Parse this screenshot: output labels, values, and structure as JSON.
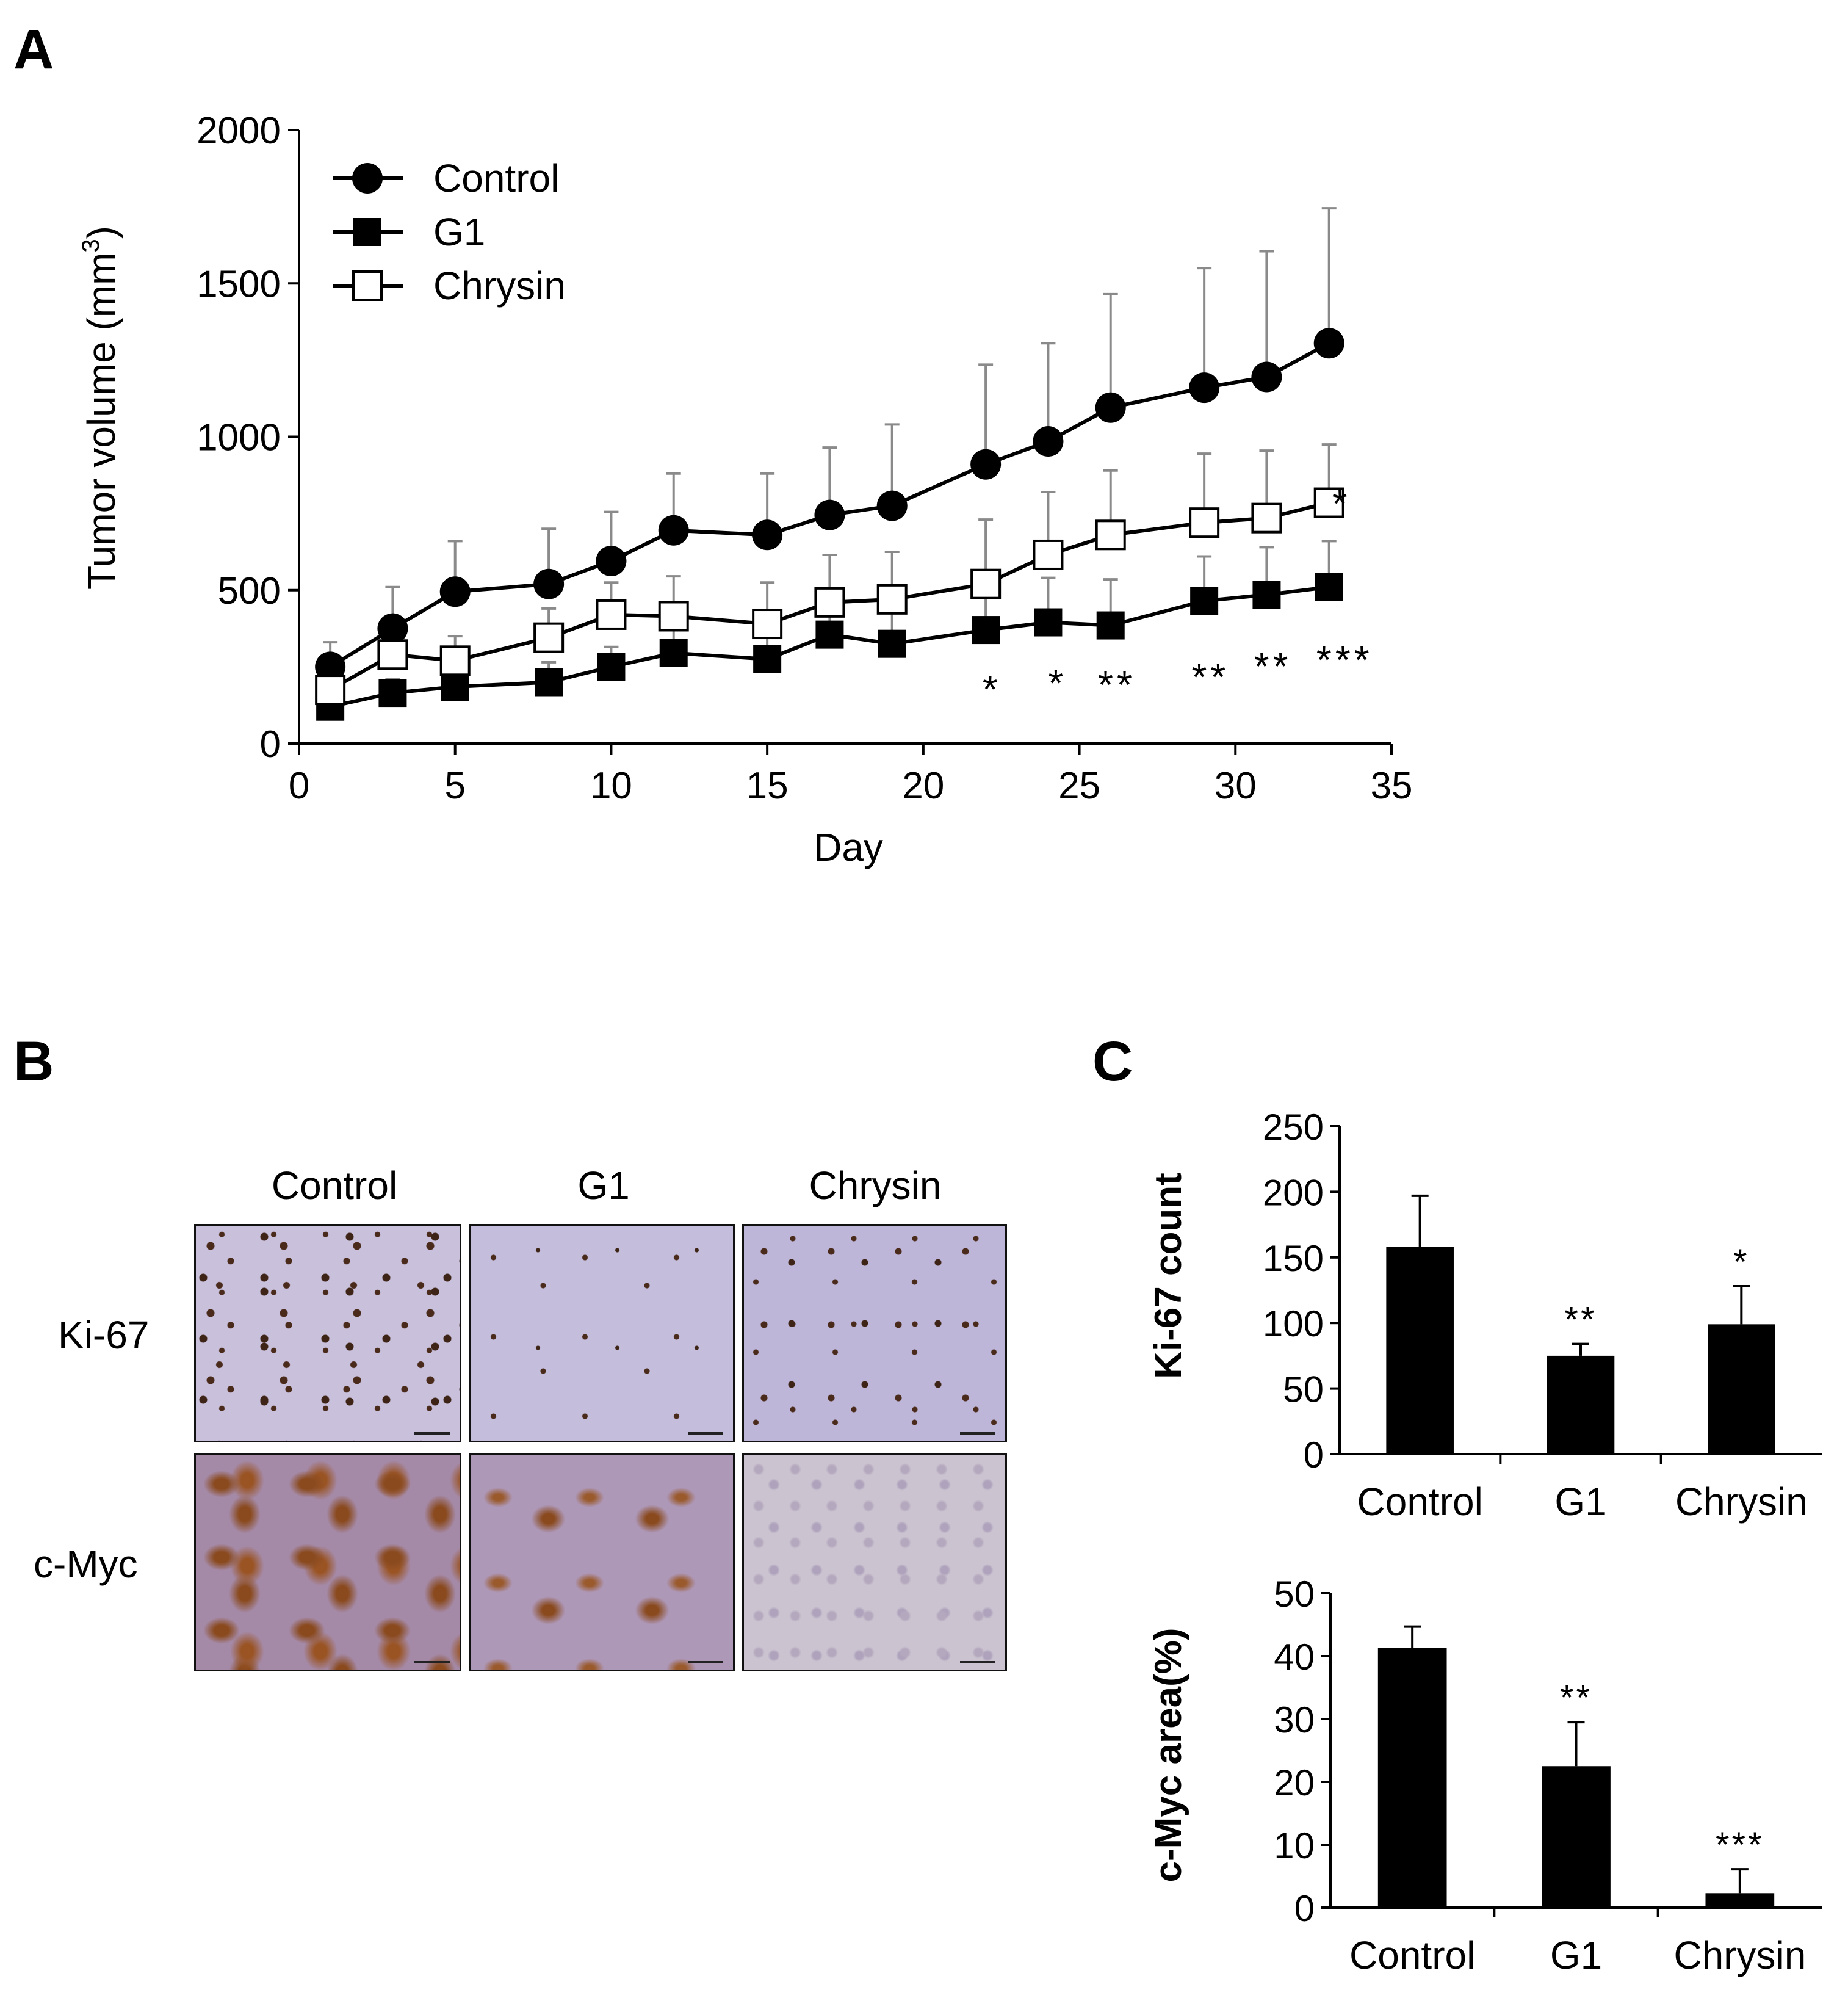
{
  "panels": {
    "a": "A",
    "b": "B",
    "c": "C"
  },
  "panelA": {
    "chart_data": {
      "type": "line",
      "xlabel": "Day",
      "ylabel_main": "Tumor volume (mm",
      "ylabel_sup": "3",
      "ylabel_close": ")",
      "xlim": [
        0,
        35
      ],
      "ylim": [
        0,
        2000
      ],
      "xticks": [
        "0",
        "5",
        "10",
        "15",
        "20",
        "25",
        "30",
        "35"
      ],
      "yticks": [
        "0",
        "500",
        "1000",
        "1500",
        "2000"
      ],
      "grid": false,
      "legend_position": "top-left",
      "x": [
        1,
        3,
        5,
        8,
        10,
        12,
        15,
        17,
        19,
        22,
        24,
        26,
        29,
        31,
        33
      ],
      "series": [
        {
          "name": "Control",
          "marker": "filled-circle",
          "values": [
            250,
            375,
            495,
            520,
            595,
            695,
            680,
            745,
            775,
            910,
            985,
            1095,
            1160,
            1195,
            1305
          ],
          "err_upper": [
            330,
            510,
            660,
            700,
            755,
            880,
            880,
            965,
            1040,
            1235,
            1305,
            1465,
            1550,
            1605,
            1745
          ]
        },
        {
          "name": "G1",
          "marker": "filled-square",
          "values": [
            120,
            165,
            185,
            200,
            250,
            295,
            275,
            355,
            325,
            370,
            395,
            385,
            465,
            485,
            510
          ],
          "err_upper": [
            150,
            210,
            240,
            265,
            315,
            385,
            365,
            475,
            440,
            495,
            540,
            535,
            610,
            640,
            660
          ]
        },
        {
          "name": "Chrysin",
          "marker": "open-square",
          "values": [
            175,
            290,
            270,
            345,
            420,
            415,
            390,
            460,
            470,
            520,
            615,
            680,
            720,
            735,
            785
          ],
          "err_upper": [
            220,
            370,
            350,
            440,
            525,
            545,
            525,
            615,
            625,
            730,
            820,
            890,
            945,
            955,
            975
          ]
        }
      ],
      "annotations": [
        {
          "text": "*",
          "x": 33.4,
          "y": 830
        },
        {
          "text": "*",
          "x": 22.2,
          "y": 225
        },
        {
          "text": "*",
          "x": 24.3,
          "y": 245
        },
        {
          "text": "**",
          "x": 26.2,
          "y": 240
        },
        {
          "text": "**",
          "x": 29.2,
          "y": 265
        },
        {
          "text": "**",
          "x": 31.2,
          "y": 300
        },
        {
          "text": "***",
          "x": 33.5,
          "y": 320
        }
      ]
    }
  },
  "panelB": {
    "columns": [
      "Control",
      "G1",
      "Chrysin"
    ],
    "rows": [
      "Ki-67",
      "c-Myc"
    ]
  },
  "panelC": {
    "chart_data": [
      {
        "type": "bar",
        "ylabel": "Ki-67 count",
        "categories": [
          "Control",
          "G1",
          "Chrysin"
        ],
        "values": [
          158,
          75,
          99
        ],
        "err_upper": [
          197,
          84,
          128
        ],
        "significance": [
          "",
          "**",
          "*"
        ],
        "ylim": [
          0,
          250
        ],
        "yticks": [
          "0",
          "50",
          "100",
          "150",
          "200",
          "250"
        ],
        "bar_color": "#000000"
      },
      {
        "type": "bar",
        "ylabel": "c-Myc area(%)",
        "categories": [
          "Control",
          "G1",
          "Chrysin"
        ],
        "values": [
          41.3,
          22.5,
          2.3
        ],
        "err_upper": [
          44.7,
          29.5,
          6.1
        ],
        "significance": [
          "",
          "**",
          "***"
        ],
        "ylim": [
          0,
          50
        ],
        "yticks": [
          "0",
          "10",
          "20",
          "30",
          "40",
          "50"
        ],
        "bar_color": "#000000"
      }
    ]
  }
}
